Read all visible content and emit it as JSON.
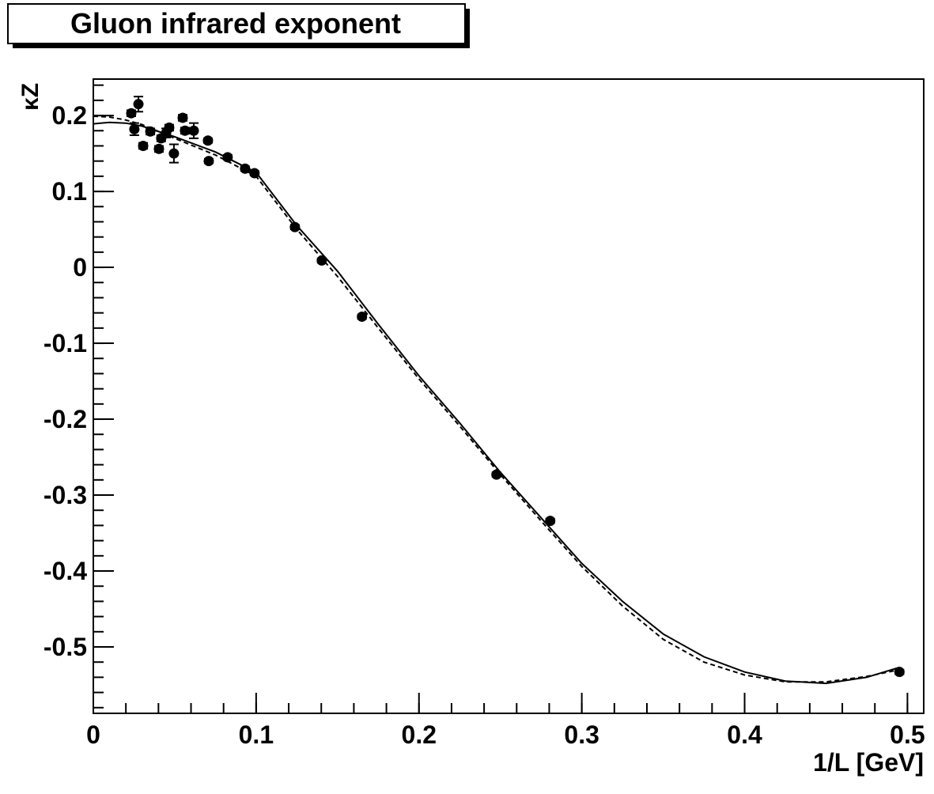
{
  "chart_data": {
    "type": "scatter",
    "title": "Gluon infrared exponent",
    "x_label": "1/L [GeV]",
    "y_label": "κZ",
    "xlim": [
      0,
      0.51
    ],
    "ylim": [
      -0.5875,
      0.248
    ],
    "xticks": [
      0,
      0.1,
      0.2,
      0.3,
      0.4,
      0.5
    ],
    "yticks": [
      -0.5,
      -0.4,
      -0.3,
      -0.2,
      -0.1,
      0,
      0.1,
      0.2
    ],
    "series": [
      {
        "type": "scatter",
        "color": "#000000",
        "x": [
          0.0233,
          0.0252,
          0.0277,
          0.0306,
          0.035,
          0.0403,
          0.0417,
          0.0447,
          0.0466,
          0.0495,
          0.0549,
          0.0563,
          0.0617,
          0.0704,
          0.0709,
          0.0825,
          0.0932,
          0.099,
          0.1238,
          0.1403,
          0.165,
          0.2476,
          0.2806,
          0.4951
        ],
        "values": [
          0.203,
          0.182,
          0.215,
          0.16,
          0.179,
          0.156,
          0.17,
          0.177,
          0.184,
          0.15,
          0.197,
          0.18,
          0.18,
          0.167,
          0.14,
          0.145,
          0.13,
          0.124,
          0.053,
          0.009,
          -0.065,
          -0.273,
          -0.334,
          -0.533
        ],
        "errors": [
          0.004,
          0.008,
          0.01,
          0.004,
          0.004,
          0.004,
          0.004,
          0.006,
          0.004,
          0.012,
          0.004,
          0.004,
          0.01,
          0.003,
          0.003,
          0.003,
          0.003,
          0.003,
          0.003,
          0.003,
          0.003,
          0.003,
          0.003,
          0.003
        ]
      },
      {
        "type": "line",
        "color": "#000000",
        "dash": false,
        "x": [
          0,
          0.01,
          0.02,
          0.03,
          0.05,
          0.075,
          0.1,
          0.125,
          0.15,
          0.175,
          0.2,
          0.225,
          0.25,
          0.275,
          0.3,
          0.325,
          0.35,
          0.375,
          0.4,
          0.425,
          0.45,
          0.475,
          0.495
        ],
        "values": [
          0.189,
          0.191,
          0.19,
          0.186,
          0.172,
          0.152,
          0.125,
          0.055,
          -0.005,
          -0.075,
          -0.143,
          -0.205,
          -0.27,
          -0.33,
          -0.39,
          -0.44,
          -0.483,
          -0.513,
          -0.533,
          -0.545,
          -0.548,
          -0.54,
          -0.527
        ]
      },
      {
        "type": "line",
        "color": "#000000",
        "dash": true,
        "x": [
          0,
          0.01,
          0.02,
          0.03,
          0.05,
          0.075,
          0.1,
          0.125,
          0.15,
          0.175,
          0.2,
          0.225,
          0.25,
          0.275,
          0.3,
          0.325,
          0.35,
          0.375,
          0.4,
          0.425,
          0.45,
          0.475,
          0.495
        ],
        "values": [
          0.199,
          0.198,
          0.194,
          0.188,
          0.17,
          0.148,
          0.12,
          0.05,
          -0.012,
          -0.08,
          -0.147,
          -0.209,
          -0.273,
          -0.334,
          -0.394,
          -0.446,
          -0.49,
          -0.52,
          -0.537,
          -0.546,
          -0.546,
          -0.539,
          -0.53
        ]
      }
    ]
  }
}
